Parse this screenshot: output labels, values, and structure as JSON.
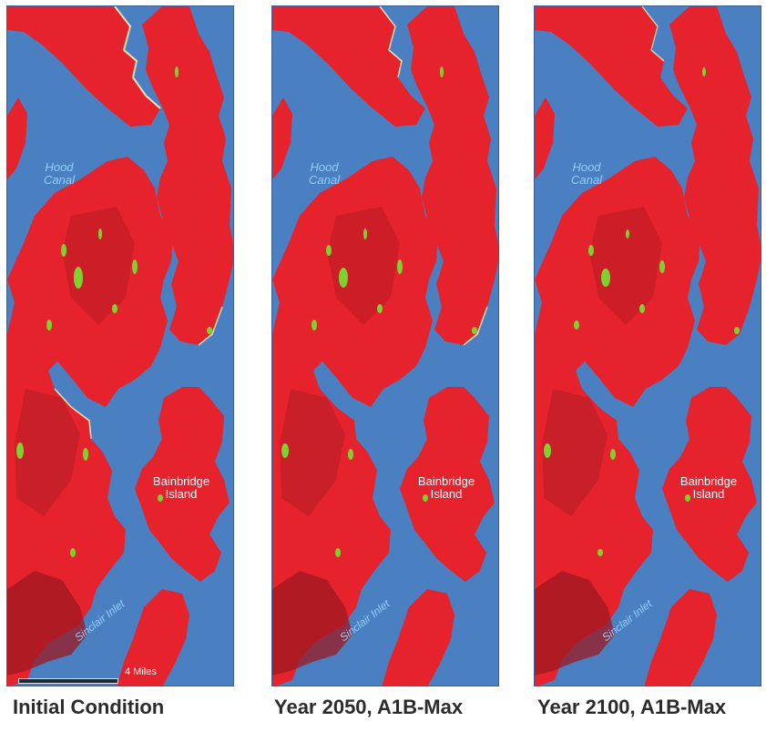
{
  "colors": {
    "water": "#4a7fc1",
    "land": "#e6232d",
    "dark_land": "#9e1820",
    "marsh": "#7fd130",
    "beach": "#f4e3b3",
    "water_label": "#8fd0ff"
  },
  "labels": {
    "hood_canal": "Hood\nCanal",
    "bainbridge": "Bainbridge\nIsland",
    "sinclair": "Sinclair Inlet",
    "scale": "4 Miles"
  },
  "panels": [
    {
      "caption": "Initial Condition"
    },
    {
      "caption": "Year 2050, A1B-Max"
    },
    {
      "caption": "Year 2100, A1B-Max"
    }
  ]
}
